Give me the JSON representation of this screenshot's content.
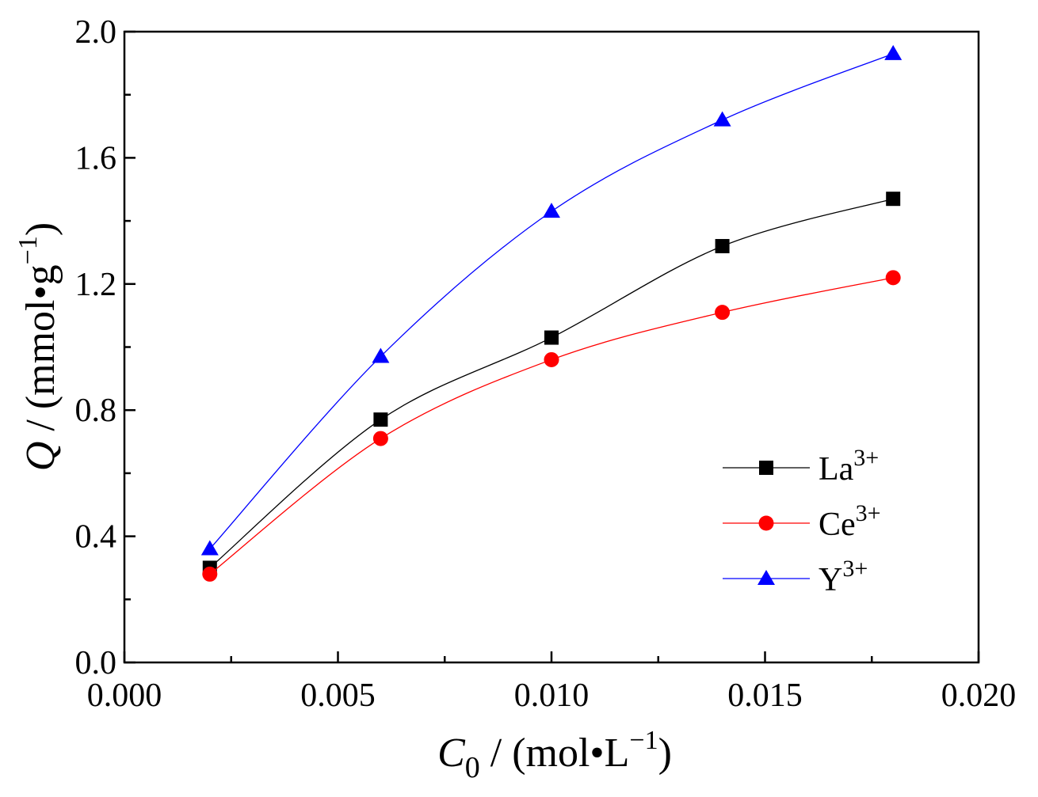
{
  "chart_data": {
    "type": "line",
    "title": "",
    "xlabel": {
      "var": "C",
      "sub": "0",
      "unit_prefix": " / (mol•L",
      "unit_sup": "−1",
      "unit_suffix": ")"
    },
    "ylabel": {
      "var": "Q",
      "unit_prefix": " / (mmol•g",
      "unit_sup": "−1",
      "unit_suffix": ")"
    },
    "xlim": [
      0,
      0.02
    ],
    "ylim": [
      0,
      2.0
    ],
    "xticks": [
      0,
      0.005,
      0.01,
      0.015,
      0.02
    ],
    "xtick_labels": [
      "0.000",
      "0.005",
      "0.010",
      "0.015",
      "0.020"
    ],
    "yticks": [
      0,
      0.4,
      0.8,
      1.2,
      1.6,
      2.0
    ],
    "ytick_labels": [
      "0.0",
      "0.4",
      "0.8",
      "1.2",
      "1.6",
      "2.0"
    ],
    "grid": false,
    "legend_position": "lower-right",
    "x": [
      0.002,
      0.006,
      0.01,
      0.014,
      0.018
    ],
    "series": [
      {
        "name": "La",
        "sup": "3+",
        "marker": "square",
        "color": "#000000",
        "line_color": "#000000",
        "values": [
          0.3,
          0.77,
          1.03,
          1.32,
          1.47
        ]
      },
      {
        "name": "Ce",
        "sup": "3+",
        "marker": "circle",
        "color": "#ff0000",
        "line_color": "#ff0000",
        "values": [
          0.28,
          0.71,
          0.96,
          1.11,
          1.22
        ]
      },
      {
        "name": "Y",
        "sup": "3+",
        "marker": "triangle",
        "color": "#0000ff",
        "line_color": "#0000ff",
        "values": [
          0.36,
          0.97,
          1.43,
          1.72,
          1.93
        ]
      }
    ]
  }
}
